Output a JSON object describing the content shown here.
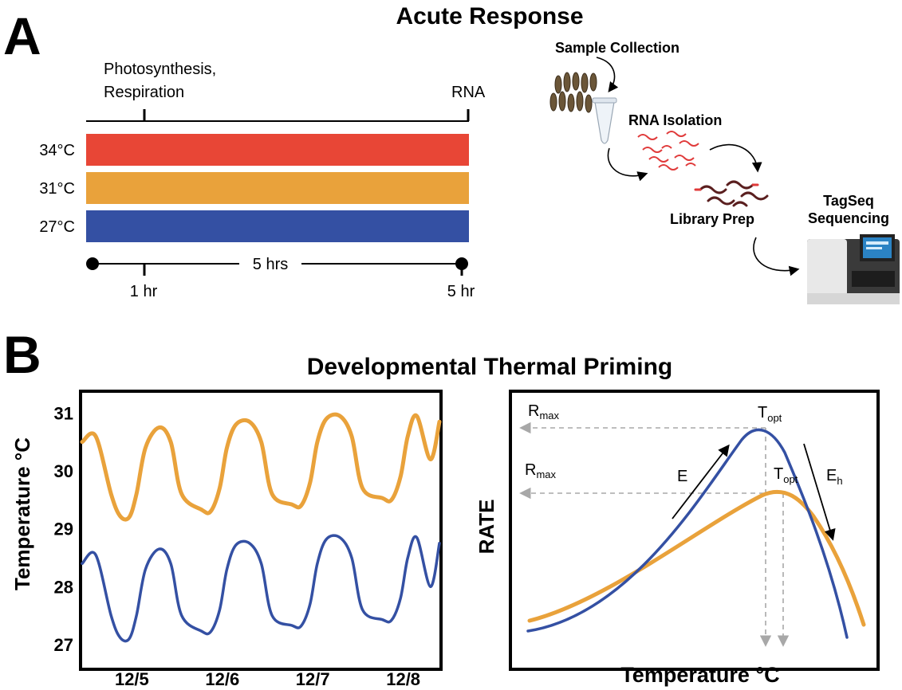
{
  "panel_a": {
    "letter": "A",
    "title": "Acute Response",
    "label_photo_line1": "Photosynthesis,",
    "label_photo_line2": "Respiration",
    "label_rna": "RNA",
    "treatments": [
      {
        "label": "34°C",
        "color": "#e84636"
      },
      {
        "label": "31°C",
        "color": "#e9a23b"
      },
      {
        "label": "27°C",
        "color": "#3450a3"
      }
    ],
    "duration_label": "5 hrs",
    "tick_1hr": "1 hr",
    "tick_5hr": "5 hr",
    "workflow": {
      "sample_collection": "Sample Collection",
      "rna_isolation": "RNA Isolation",
      "library_prep": "Library Prep",
      "sequencing_line1": "TagSeq",
      "sequencing_line2": "Sequencing"
    }
  },
  "panel_b": {
    "letter": "B",
    "title": "Developmental Thermal Priming",
    "chart_data": [
      {
        "type": "line",
        "ylabel": "Temperature °C",
        "yticks": [
          27,
          28,
          29,
          30,
          31
        ],
        "ylim": [
          26.6,
          31.35
        ],
        "xlim": [
          12.4,
          16.35
        ],
        "x_tick_labels": [
          "12/5",
          "12/6",
          "12/7",
          "12/8"
        ],
        "x_tick_positions": [
          12.95,
          13.95,
          14.95,
          15.95
        ],
        "series": [
          {
            "color": "#e9a23b",
            "x": [
              12.4,
              12.55,
              12.72,
              12.82,
              12.92,
              13.0,
              13.1,
              13.25,
              13.38,
              13.5,
              13.72,
              13.82,
              13.92,
              14.0,
              14.1,
              14.25,
              14.38,
              14.5,
              14.72,
              14.82,
              14.92,
              15.0,
              15.1,
              15.25,
              15.38,
              15.5,
              15.72,
              15.82,
              15.92,
              16.0,
              16.1,
              16.25,
              16.35
            ],
            "y": [
              30.5,
              30.6,
              29.6,
              29.22,
              29.2,
              29.6,
              30.4,
              30.75,
              30.5,
              29.6,
              29.33,
              29.3,
              29.7,
              30.4,
              30.8,
              30.85,
              30.5,
              29.6,
              29.42,
              29.4,
              29.8,
              30.5,
              30.9,
              30.95,
              30.6,
              29.7,
              29.53,
              29.5,
              29.9,
              30.6,
              30.95,
              30.2,
              30.85
            ]
          },
          {
            "color": "#3450a3",
            "x": [
              12.4,
              12.55,
              12.72,
              12.82,
              12.92,
              13.0,
              13.1,
              13.25,
              13.38,
              13.5,
              13.72,
              13.82,
              13.92,
              14.0,
              14.1,
              14.25,
              14.38,
              14.5,
              14.72,
              14.82,
              14.92,
              15.0,
              15.1,
              15.25,
              15.38,
              15.5,
              15.72,
              15.82,
              15.92,
              16.0,
              16.1,
              16.25,
              16.35
            ],
            "y": [
              28.4,
              28.55,
              27.5,
              27.12,
              27.1,
              27.5,
              28.3,
              28.65,
              28.4,
              27.5,
              27.23,
              27.22,
              27.6,
              28.3,
              28.72,
              28.75,
              28.4,
              27.5,
              27.33,
              27.32,
              27.7,
              28.4,
              28.82,
              28.85,
              28.5,
              27.6,
              27.43,
              27.42,
              27.8,
              28.5,
              28.85,
              28.0,
              28.75
            ]
          }
        ]
      },
      {
        "type": "line",
        "xlabel": "Temperature °C",
        "ylabel": "RATE",
        "annotations": {
          "rmax_base": "R",
          "rmax_sub": "max",
          "topt_base": "T",
          "topt_sub": "opt",
          "e_label": "E",
          "eh_base": "E",
          "eh_sub": "h"
        },
        "series": [
          {
            "color": "#3450a3",
            "peak_x": 0.72,
            "peak_y": 0.93
          },
          {
            "color": "#e9a23b",
            "peak_x": 0.77,
            "peak_y": 0.65
          }
        ]
      }
    ]
  }
}
